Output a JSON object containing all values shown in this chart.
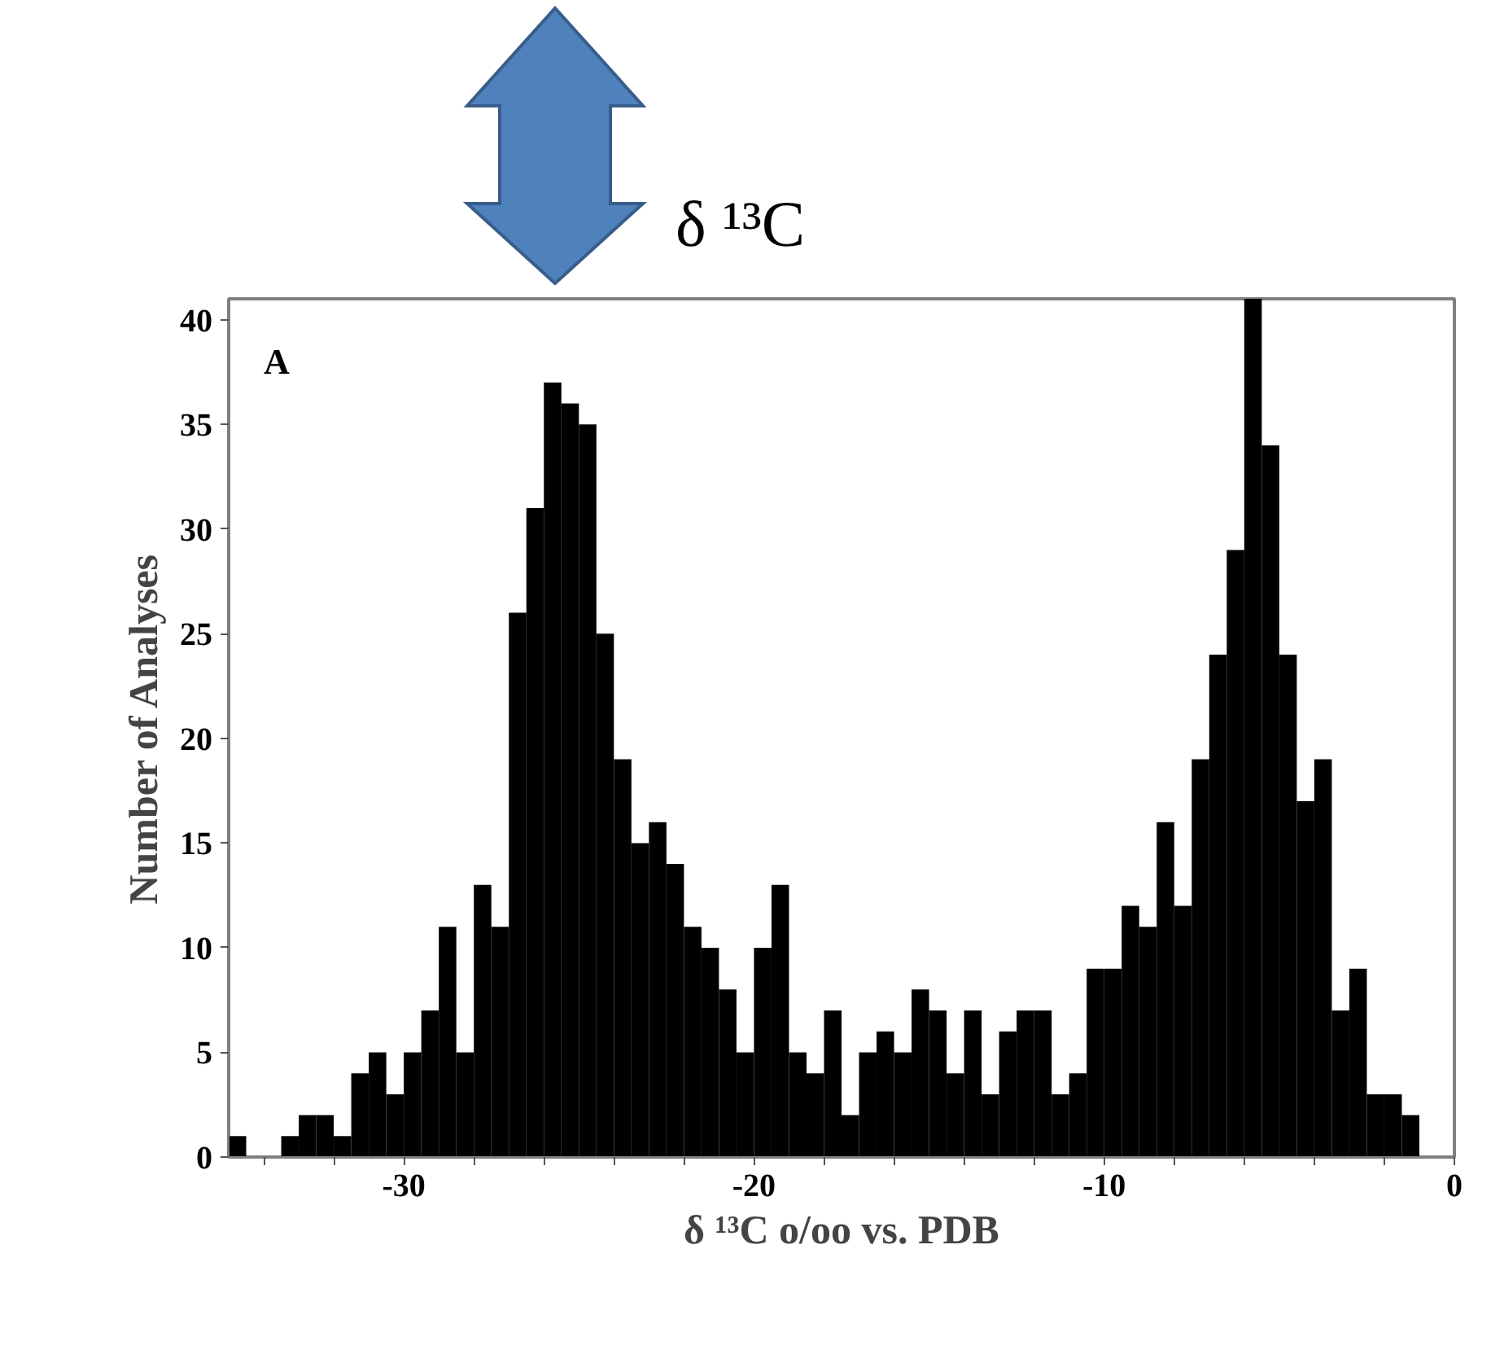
{
  "chart_data": {
    "type": "histogram",
    "xlabel": "δ ¹³C o/oo vs. PDB",
    "ylabel": "Number of Analyses",
    "annotations": [
      "A",
      "δ ¹³C"
    ],
    "bins": [
      -35,
      -34.5,
      -34,
      -33.5,
      -33,
      -32.5,
      -32,
      -31.5,
      -31,
      -30.5,
      -30,
      -29.5,
      -29,
      -28.5,
      -28,
      -27.5,
      -27,
      -26.5,
      -26,
      -25.5,
      -25,
      -24.5,
      -24,
      -23.5,
      -23,
      -22.5,
      -22,
      -21.5,
      -21,
      -20.5,
      -20,
      -19.5,
      -19,
      -18.5,
      -18,
      -17.5,
      -17,
      -16.5,
      -16,
      -15.5,
      -15,
      -14.5,
      -14,
      -13.5,
      -13,
      -12.5,
      -12,
      -11.5,
      -11,
      -10.5,
      -10,
      -9.5,
      -9,
      -8.5,
      -8,
      -7.5,
      -7,
      -6.5,
      -6,
      -5.5,
      -5,
      -4.5,
      -4,
      -3.5,
      -3,
      -2.5,
      -2,
      -1.5,
      -1
    ],
    "values": [
      1,
      0,
      0,
      1,
      2,
      2,
      1,
      4,
      5,
      3,
      5,
      7,
      11,
      5,
      13,
      11,
      26,
      31,
      37,
      36,
      35,
      25,
      19,
      15,
      16,
      14,
      11,
      10,
      8,
      5,
      10,
      13,
      5,
      4,
      7,
      2,
      5,
      6,
      5,
      8,
      7,
      4,
      7,
      3,
      6,
      7,
      7,
      3,
      4,
      9,
      9,
      12,
      11,
      16,
      12,
      19,
      24,
      29,
      41,
      34,
      24,
      17,
      19,
      7,
      9,
      3,
      3,
      2
    ],
    "color": "#000000",
    "xlim": [
      -35,
      0
    ],
    "xticks": [
      {
        "value": -34,
        "label": null
      },
      {
        "value": -32,
        "label": null
      },
      -30,
      {
        "value": -28,
        "label": null
      },
      {
        "value": -26,
        "label": null
      },
      {
        "value": -24,
        "label": null
      },
      {
        "value": -22,
        "label": null
      },
      -20,
      {
        "value": -18,
        "label": null
      },
      {
        "value": -16,
        "label": null
      },
      {
        "value": -14,
        "label": null
      },
      {
        "value": -12,
        "label": null
      },
      -10,
      {
        "value": -8,
        "label": null
      },
      {
        "value": -6,
        "label": null
      },
      {
        "value": -4,
        "label": null
      },
      {
        "value": -2,
        "label": null
      },
      0
    ],
    "ylim": [
      0,
      41
    ],
    "yticks": [
      0,
      5,
      10,
      15,
      20,
      25,
      30,
      35,
      40
    ],
    "grid": false
  }
}
